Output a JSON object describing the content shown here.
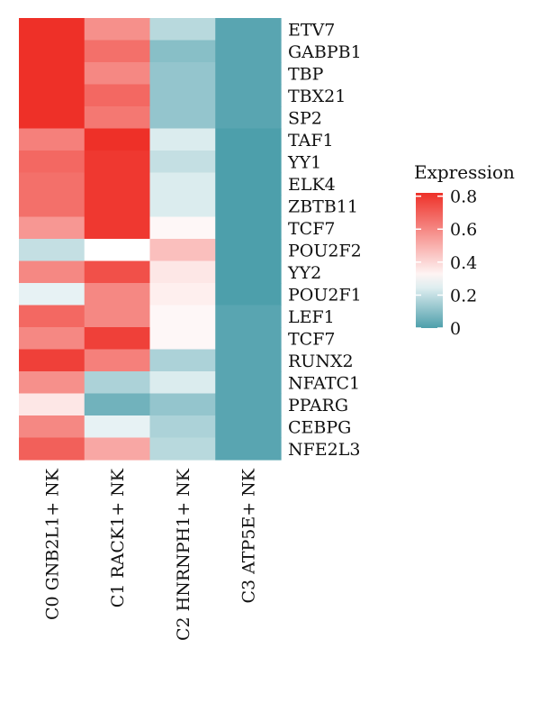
{
  "chart_data": {
    "type": "heatmap",
    "title": "",
    "xlabel": "",
    "ylabel": "",
    "columns": [
      "C0 GNB2L1+ NK",
      "C1 RACK1+ NK",
      "C2 HNRNPH1+ NK",
      "C3 ATP5E+ NK"
    ],
    "rows": [
      "ETV7",
      "GABPB1",
      "TBP",
      "TBX21",
      "SP2",
      "TAF1",
      "YY1",
      "ELK4",
      "ZBTB11",
      "TCF7",
      "POU2F2",
      "YY2",
      "POU2F1",
      "LEF1",
      "TCF7",
      "RUNX2",
      "NFATC1",
      "PPARG",
      "CEBPG",
      "NFE2L3"
    ],
    "values": [
      [
        0.82,
        0.58,
        0.18,
        0.02
      ],
      [
        0.82,
        0.66,
        0.1,
        0.02
      ],
      [
        0.82,
        0.6,
        0.12,
        0.02
      ],
      [
        0.82,
        0.68,
        0.12,
        0.02
      ],
      [
        0.82,
        0.64,
        0.12,
        0.02
      ],
      [
        0.62,
        0.82,
        0.24,
        0.0
      ],
      [
        0.68,
        0.8,
        0.2,
        0.0
      ],
      [
        0.66,
        0.8,
        0.24,
        0.0
      ],
      [
        0.66,
        0.8,
        0.24,
        0.0
      ],
      [
        0.56,
        0.8,
        0.32,
        0.0
      ],
      [
        0.2,
        0.3,
        0.46,
        0.0
      ],
      [
        0.6,
        0.74,
        0.36,
        0.0
      ],
      [
        0.26,
        0.6,
        0.34,
        0.0
      ],
      [
        0.68,
        0.6,
        0.32,
        0.02
      ],
      [
        0.6,
        0.78,
        0.32,
        0.02
      ],
      [
        0.78,
        0.62,
        0.16,
        0.02
      ],
      [
        0.58,
        0.16,
        0.24,
        0.02
      ],
      [
        0.36,
        0.06,
        0.12,
        0.02
      ],
      [
        0.6,
        0.26,
        0.16,
        0.02
      ],
      [
        0.7,
        0.52,
        0.18,
        0.02
      ]
    ],
    "color_scale": {
      "min": 0,
      "mid": 0.3,
      "max": 0.82,
      "low_color": "#4d9fab",
      "mid_color": "#ffffff",
      "high_color": "#ee3028"
    },
    "legend": {
      "title": "Expression",
      "ticks": [
        "0.8",
        "0.6",
        "0.4",
        "0.2",
        "0"
      ],
      "tick_values": [
        0.8,
        0.6,
        0.4,
        0.2,
        0
      ],
      "placement": "right"
    }
  }
}
